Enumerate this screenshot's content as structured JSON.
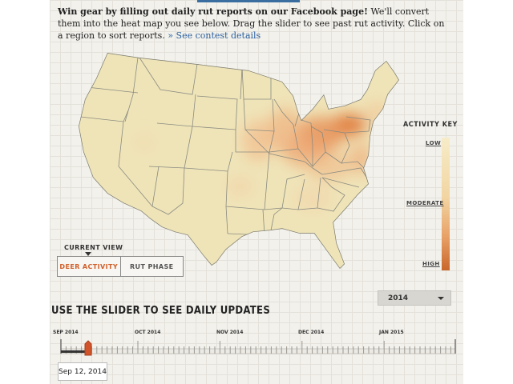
{
  "intro": {
    "lead": "Win gear by filling out daily rut reports on our Facebook page!",
    "body": " We'll convert them into the heat map you see below. Drag the slider to see past rut activity. Click on a region to sort reports. ",
    "link": "» See contest details"
  },
  "key": {
    "title": "ACTIVITY KEY",
    "low": "LOW",
    "moderate": "MODERATE",
    "high": "HIGH",
    "colors": {
      "low": "#f6ecc8",
      "moderate": "#f2d5a2",
      "high": "#c9672b"
    }
  },
  "view": {
    "label": "CURRENT VIEW",
    "options": [
      "DEER ACTIVITY",
      "RUT PHASE"
    ],
    "selected": "DEER ACTIVITY"
  },
  "year_select": {
    "value": "2014"
  },
  "slider": {
    "title": "USE THE SLIDER TO SEE DAILY UPDATES",
    "months": [
      "SEP 2014",
      "OCT 2014",
      "NOV 2014",
      "DEC 2014",
      "JAN 2015"
    ],
    "current_date": "Sep 12, 2014"
  },
  "colors": {
    "accent": "#d0602a",
    "link": "#2a5f9e",
    "map_base": "#efe4b8",
    "border": "#8a8a80"
  }
}
